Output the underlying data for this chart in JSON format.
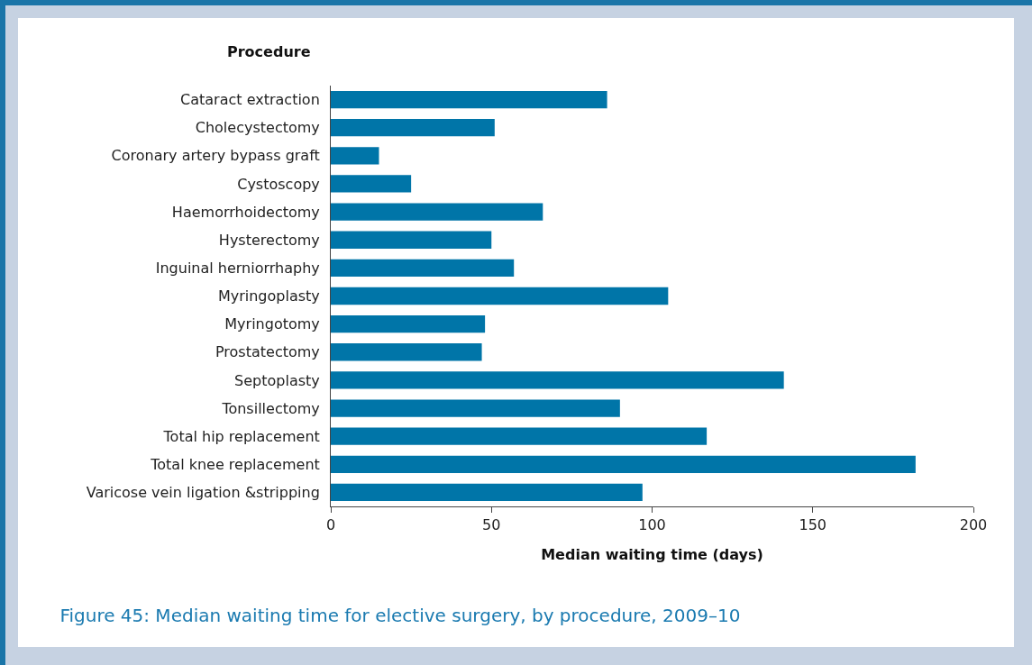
{
  "chart_data": {
    "type": "bar",
    "orientation": "horizontal",
    "title": "Figure 45: Median waiting time for elective surgery, by procedure, 2009–10",
    "xlabel": "Median waiting time (days)",
    "ylabel": "Procedure",
    "categories": [
      "Cataract extraction",
      "Cholecystectomy",
      "Coronary artery bypass graft",
      "Cystoscopy",
      "Haemorrhoidectomy",
      "Hysterectomy",
      "Inguinal herniorrhaphy",
      "Myringoplasty",
      "Myringotomy",
      "Prostatectomy",
      "Septoplasty",
      "Tonsillectomy",
      "Total hip replacement",
      "Total knee replacement",
      "Varicose vein ligation &stripping"
    ],
    "values": [
      86,
      51,
      15,
      25,
      66,
      50,
      57,
      105,
      48,
      47,
      141,
      90,
      117,
      182,
      97
    ],
    "color": "#0075a8",
    "xlim": [
      0,
      200
    ],
    "xticks": [
      0,
      50,
      100,
      150,
      200
    ],
    "grid": false
  }
}
